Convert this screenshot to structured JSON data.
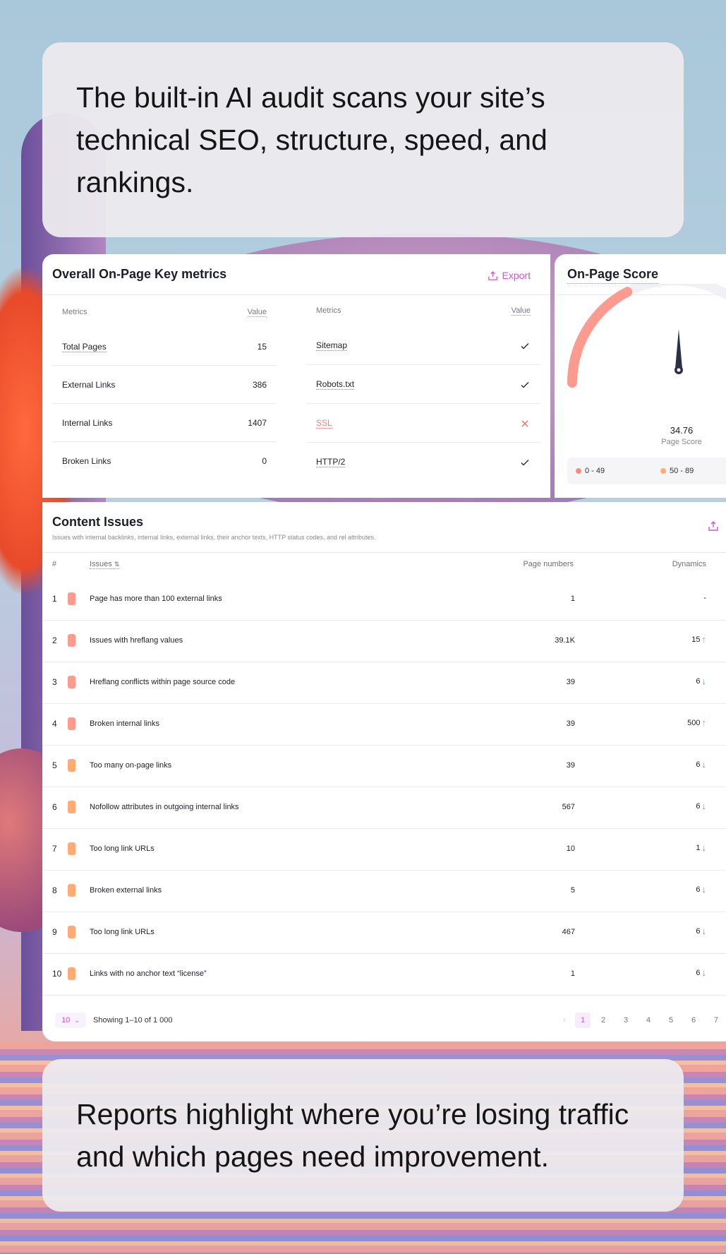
{
  "intro_text": "The built-in AI audit scans your site’s technical SEO, structure, speed, and rankings.",
  "outro_text": "Reports highlight where you’re losing traffic and which pages need improvement.",
  "metrics": {
    "title": "Overall On-Page Key metrics",
    "export_label": "Export",
    "left": {
      "col_metrics": "Metrics",
      "col_value": "Value",
      "rows": [
        {
          "name": "Total Pages",
          "value": "15"
        },
        {
          "name": "External Links",
          "value": "386"
        },
        {
          "name": "Internal Links",
          "value": "1407"
        },
        {
          "name": "Broken Links",
          "value": "0"
        }
      ]
    },
    "right": {
      "col_metrics": "Metrics",
      "col_value": "Value",
      "rows": [
        {
          "name": "Sitemap",
          "status": "ok"
        },
        {
          "name": "Robots.txt",
          "status": "ok"
        },
        {
          "name": "SSL",
          "status": "fail"
        },
        {
          "name": "HTTP/2",
          "status": "ok"
        }
      ]
    }
  },
  "score": {
    "title": "On-Page Score",
    "value": "34.76",
    "value_label": "Page Score",
    "value_fraction": 0.3476,
    "legend": [
      {
        "label": "0 - 49",
        "color": "#ff8b7f"
      },
      {
        "label": "50 - 89",
        "color": "#ffae70"
      }
    ]
  },
  "issues": {
    "title": "Content Issues",
    "subtitle": "Issues with internal backlinks, internal links, external links, their anchor texts, HTTP status codes, and rel attributes.",
    "col_num": "#",
    "col_issue": "Issues",
    "col_pages": "Page numbers",
    "col_dyn": "Dynamics",
    "rows": [
      {
        "num": "1",
        "label": "Page has more than 100 external links",
        "pages": "1",
        "dyn": "-",
        "trend": "none",
        "severity": "#ff9a8f"
      },
      {
        "num": "2",
        "label": "Issues with hreflang values",
        "pages": "39.1K",
        "dyn": "15",
        "trend": "up",
        "severity": "#ff9a8f"
      },
      {
        "num": "3",
        "label": "Hreflang conflicts within page source code",
        "pages": "39",
        "dyn": "6",
        "trend": "down",
        "severity": "#ff9a8f"
      },
      {
        "num": "4",
        "label": "Broken internal links",
        "pages": "39",
        "dyn": "500",
        "trend": "up",
        "severity": "#ff9a8f"
      },
      {
        "num": "5",
        "label": "Too many on-page links",
        "pages": "39",
        "dyn": "6",
        "trend": "down",
        "severity": "#ffab73"
      },
      {
        "num": "6",
        "label": "Nofollow attributes in outgoing internal links",
        "pages": "567",
        "dyn": "6",
        "trend": "down",
        "severity": "#ffab73"
      },
      {
        "num": "7",
        "label": "Too long link URLs",
        "pages": "10",
        "dyn": "1",
        "trend": "down",
        "severity": "#ffab73"
      },
      {
        "num": "8",
        "label": "Broken external links",
        "pages": "5",
        "dyn": "6",
        "trend": "down",
        "severity": "#ffab73"
      },
      {
        "num": "9",
        "label": "Too long link URLs",
        "pages": "467",
        "dyn": "6",
        "trend": "down",
        "severity": "#ffab73"
      },
      {
        "num": "10",
        "label": "Links with no anchor text “license”",
        "pages": "1",
        "dyn": "6",
        "trend": "down",
        "severity": "#ffab73"
      }
    ],
    "pager": {
      "page_size": "10",
      "showing": "Showing 1–10 of 1 000",
      "pages": [
        "1",
        "2",
        "3",
        "4",
        "5",
        "6",
        "7"
      ],
      "current": "1"
    }
  },
  "colors": {
    "accent": "#d352d8",
    "gauge_fill": "#ff9a8f",
    "up": "#ff8080",
    "down": "#3bb3a7"
  }
}
